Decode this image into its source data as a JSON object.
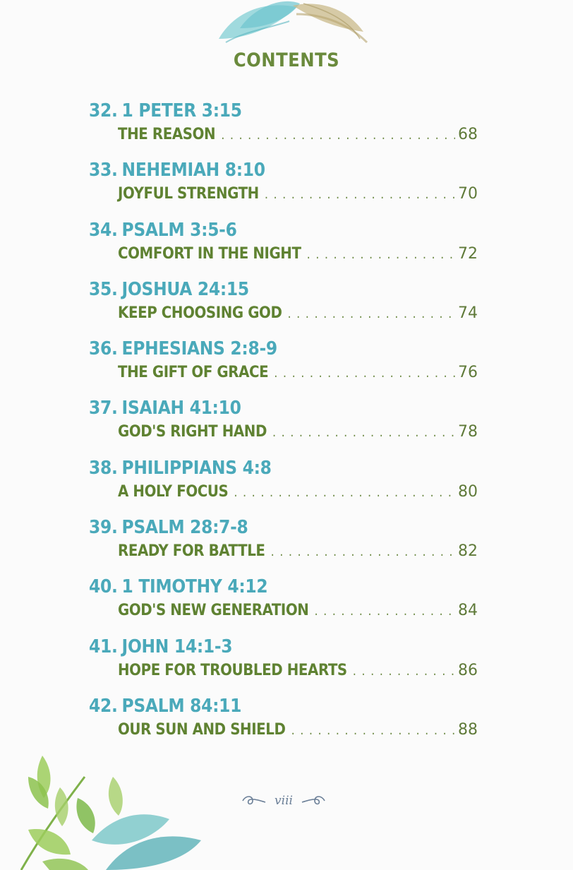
{
  "page": {
    "title": "CONTENTS",
    "footer_page": "viii"
  },
  "entries": [
    {
      "number": "32.",
      "reference": "1 PETER 3:15",
      "subtitle": "THE REASON",
      "page": "68"
    },
    {
      "number": "33.",
      "reference": "NEHEMIAH 8:10",
      "subtitle": "JOYFUL STRENGTH",
      "page": "70"
    },
    {
      "number": "34.",
      "reference": "PSALM 3:5-6",
      "subtitle": "COMFORT IN THE NIGHT",
      "page": "72"
    },
    {
      "number": "35.",
      "reference": "JOSHUA 24:15",
      "subtitle": "KEEP CHOOSING GOD",
      "page": "74"
    },
    {
      "number": "36.",
      "reference": "EPHESIANS 2:8-9",
      "subtitle": "THE GIFT OF GRACE",
      "page": "76"
    },
    {
      "number": "37.",
      "reference": "ISAIAH 41:10",
      "subtitle": "GOD'S RIGHT HAND",
      "page": "78"
    },
    {
      "number": "38.",
      "reference": "PHILIPPIANS 4:8",
      "subtitle": "A HOLY FOCUS",
      "page": "80"
    },
    {
      "number": "39.",
      "reference": "PSALM 28:7-8",
      "subtitle": "READY FOR BATTLE",
      "page": "82"
    },
    {
      "number": "40.",
      "reference": "1 TIMOTHY 4:12",
      "subtitle": "GOD'S NEW GENERATION",
      "page": "84"
    },
    {
      "number": "41.",
      "reference": "JOHN 14:1-3",
      "subtitle": "HOPE FOR TROUBLED HEARTS",
      "page": "86"
    },
    {
      "number": "42.",
      "reference": "PSALM 84:11",
      "subtitle": "OUR SUN AND SHIELD",
      "page": "88"
    }
  ],
  "colors": {
    "heading": "#4aa9ba",
    "subtitle": "#5f8232",
    "background": "#fbfbfb"
  }
}
